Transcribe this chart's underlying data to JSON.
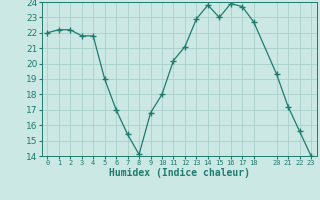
{
  "x": [
    0,
    1,
    2,
    3,
    4,
    5,
    6,
    7,
    8,
    9,
    10,
    11,
    12,
    13,
    14,
    15,
    16,
    17,
    18,
    20,
    21,
    22,
    23
  ],
  "y": [
    22.0,
    22.2,
    22.2,
    21.8,
    21.8,
    19.0,
    17.0,
    15.4,
    14.1,
    16.8,
    18.0,
    20.2,
    21.1,
    22.9,
    23.8,
    23.0,
    23.9,
    23.7,
    22.7,
    19.3,
    17.2,
    15.6,
    14.0
  ],
  "line_color": "#1e7b6e",
  "marker": "+",
  "marker_size": 4,
  "bg_color": "#cce8e4",
  "grid_color": "#aacfca",
  "xlabel": "Humidex (Indice chaleur)",
  "xlim": [
    -0.5,
    23.5
  ],
  "ylim": [
    14,
    24
  ],
  "yticks": [
    14,
    15,
    16,
    17,
    18,
    19,
    20,
    21,
    22,
    23,
    24
  ],
  "xtick_positions": [
    0,
    1,
    2,
    3,
    4,
    5,
    6,
    7,
    8,
    9,
    10,
    11,
    12,
    13,
    14,
    15,
    16,
    17,
    18,
    20,
    21,
    22,
    23
  ],
  "xtick_labels": [
    "0",
    "1",
    "2",
    "3",
    "4",
    "5",
    "6",
    "7",
    "8",
    "9",
    "10",
    "11",
    "12",
    "13",
    "14",
    "15",
    "16",
    "17",
    "18",
    "20",
    "21",
    "22",
    "23"
  ]
}
